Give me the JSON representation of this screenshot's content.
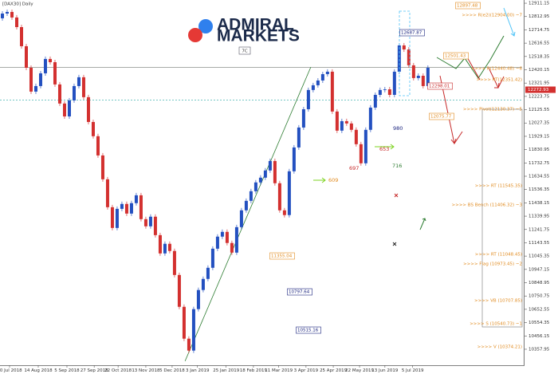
{
  "chart_data": {
    "type": "candlestick",
    "title": "[DAX30] Daily",
    "logo": {
      "line1": "ADMIRAL",
      "line2": "MARKETS",
      "badge": "7C"
    },
    "up_color": "#2350c0",
    "down_color": "#d3302f",
    "open": [
      12800,
      12835,
      12847,
      12806,
      12735,
      12594,
      12435,
      12259,
      12300,
      12394,
      12500,
      12476,
      12312,
      12171,
      12076,
      12194,
      12300,
      12365,
      12218,
      12035,
      11930,
      11788,
      11612,
      11406,
      11253,
      11394,
      11430,
      11359,
      11436,
      11494,
      11318,
      11265,
      11336,
      11200,
      11065,
      11136,
      11083,
      10906,
      10671,
      10436,
      10348,
      10654,
      10795,
      10877,
      10959,
      11100,
      11189,
      11224,
      11142,
      11071,
      11259,
      11383,
      11453,
      11524,
      11589,
      11624,
      11677,
      11747,
      11583,
      11383,
      11348,
      11671,
      11847,
      11994,
      12129,
      12271,
      12306,
      12341,
      12388,
      12406,
      12112,
      11971,
      12041,
      12024,
      11977,
      11871,
      11730,
      11977,
      12141,
      12235,
      12271,
      12276,
      12235,
      12406,
      12600,
      12570,
      12453,
      12359,
      12376,
      12300
    ],
    "close": [
      12835,
      12847,
      12806,
      12735,
      12594,
      12435,
      12259,
      12300,
      12394,
      12500,
      12476,
      12312,
      12171,
      12076,
      12194,
      12300,
      12365,
      12218,
      12035,
      11930,
      11788,
      11612,
      11406,
      11253,
      11394,
      11430,
      11359,
      11436,
      11494,
      11318,
      11265,
      11336,
      11200,
      11065,
      11136,
      11083,
      10906,
      10671,
      10436,
      10348,
      10654,
      10795,
      10877,
      10959,
      11100,
      11189,
      11224,
      11142,
      11071,
      11259,
      11383,
      11453,
      11524,
      11589,
      11624,
      11677,
      11747,
      11583,
      11383,
      11348,
      11671,
      11847,
      11994,
      12129,
      12271,
      12306,
      12341,
      12388,
      12406,
      12112,
      11971,
      12041,
      12024,
      11977,
      11871,
      11730,
      11977,
      12141,
      12235,
      12271,
      12276,
      12235,
      12406,
      12600,
      12570,
      12453,
      12359,
      12376,
      12300,
      12435
    ],
    "xlim": [
      0,
      109.2
    ],
    "xticks": [
      {
        "value": 2,
        "label": "20 Jul 2018"
      },
      {
        "value": 8,
        "label": "14 Aug 2018"
      },
      {
        "value": 14,
        "label": "5 Sep 2018"
      },
      {
        "value": 19.7,
        "label": "27 Sep 2018"
      },
      {
        "value": 24.7,
        "label": "22 Oct 2018"
      },
      {
        "value": 30.5,
        "label": "13 Nov 2018"
      },
      {
        "value": 36,
        "label": "5 Dec 2018"
      },
      {
        "value": 41.3,
        "label": "3 Jan 2019"
      },
      {
        "value": 47.3,
        "label": "25 Jan 2019"
      },
      {
        "value": 53,
        "label": "18 Feb 2019"
      },
      {
        "value": 58.3,
        "label": "11 Mar 2019"
      },
      {
        "value": 64,
        "label": "3 Apr 2019"
      },
      {
        "value": 69.7,
        "label": "25 Apr 2019"
      },
      {
        "value": 75.2,
        "label": "22 May 2019"
      },
      {
        "value": 80.5,
        "label": "13 Jun 2019"
      },
      {
        "value": 86.3,
        "label": "5 Jul 2019"
      }
    ],
    "ylim": [
      10240,
      12935
    ],
    "yticks": [
      10357.95,
      10456.15,
      10554.35,
      10652.55,
      10750.75,
      10848.95,
      10947.15,
      11045.35,
      11143.55,
      11241.75,
      11339.95,
      11438.15,
      11536.35,
      11634.55,
      11732.75,
      11830.95,
      11929.15,
      12027.35,
      12125.55,
      12223.75,
      12321.95,
      12420.15,
      12518.35,
      12616.55,
      12714.75,
      12812.95,
      12911.15
    ],
    "levels": [
      {
        "value": 12437,
        "color": "#8a8f8a"
      },
      {
        "value": 12196,
        "color": "#49b3b0"
      }
    ],
    "trendline": {
      "x": [
        38.7,
        65
      ],
      "y": [
        10270,
        12440
      ],
      "color": "#2e7d32"
    },
    "last_price": {
      "value": 12272.93,
      "label": "12272.93"
    },
    "annotations": [
      {
        "text": "12687.87",
        "color": "#1a237e"
      },
      {
        "text": "12298.01",
        "color": "#c62828"
      },
      {
        "text": "12897.48",
        "color": "#e08a1e"
      },
      {
        "text": "12501.43",
        "color": "#e08a1e"
      },
      {
        "text": "12075.77",
        "color": "#e08a1e"
      },
      {
        "text": "11355.04",
        "color": "#e08a1e"
      },
      {
        "text": "10797.64",
        "color": "#1a237e"
      },
      {
        "text": "10515.16",
        "color": "#1a237e"
      },
      {
        "text": "980",
        "color": "#1a237e"
      },
      {
        "text": "653",
        "color": "#c62828"
      },
      {
        "text": "697",
        "color": "#c62828"
      },
      {
        "text": "716",
        "color": "#2e7d32"
      },
      {
        "text": "609",
        "color": "#e08a1e"
      },
      {
        "text": ">>>> R(e2)(12904.00) ~7",
        "color": "#e08a1e"
      },
      {
        "text": ">>>> R(12440.48) ~6",
        "color": "#e08a1e"
      },
      {
        "text": ">>>> RT(12351.42)",
        "color": "#e08a1e"
      },
      {
        "text": ">>>> Pivot(12130.37) ~5",
        "color": "#e08a1e"
      },
      {
        "text": ">>>> RT (11545.35)",
        "color": "#e08a1e"
      },
      {
        "text": ">>>> BS Bench (11406.32) ~3",
        "color": "#e08a1e"
      },
      {
        "text": ">>>> RT (11048.45)",
        "color": "#e08a1e"
      },
      {
        "text": ">>>> Flag (10973.45) ~2",
        "color": "#e08a1e"
      },
      {
        "text": ">>>> VB (10707.85)",
        "color": "#e08a1e"
      },
      {
        "text": ">>>> S (10540.73) ~1",
        "color": "#e08a1e"
      },
      {
        "text": ">>>> V (10374.21)",
        "color": "#e08a1e"
      }
    ]
  }
}
